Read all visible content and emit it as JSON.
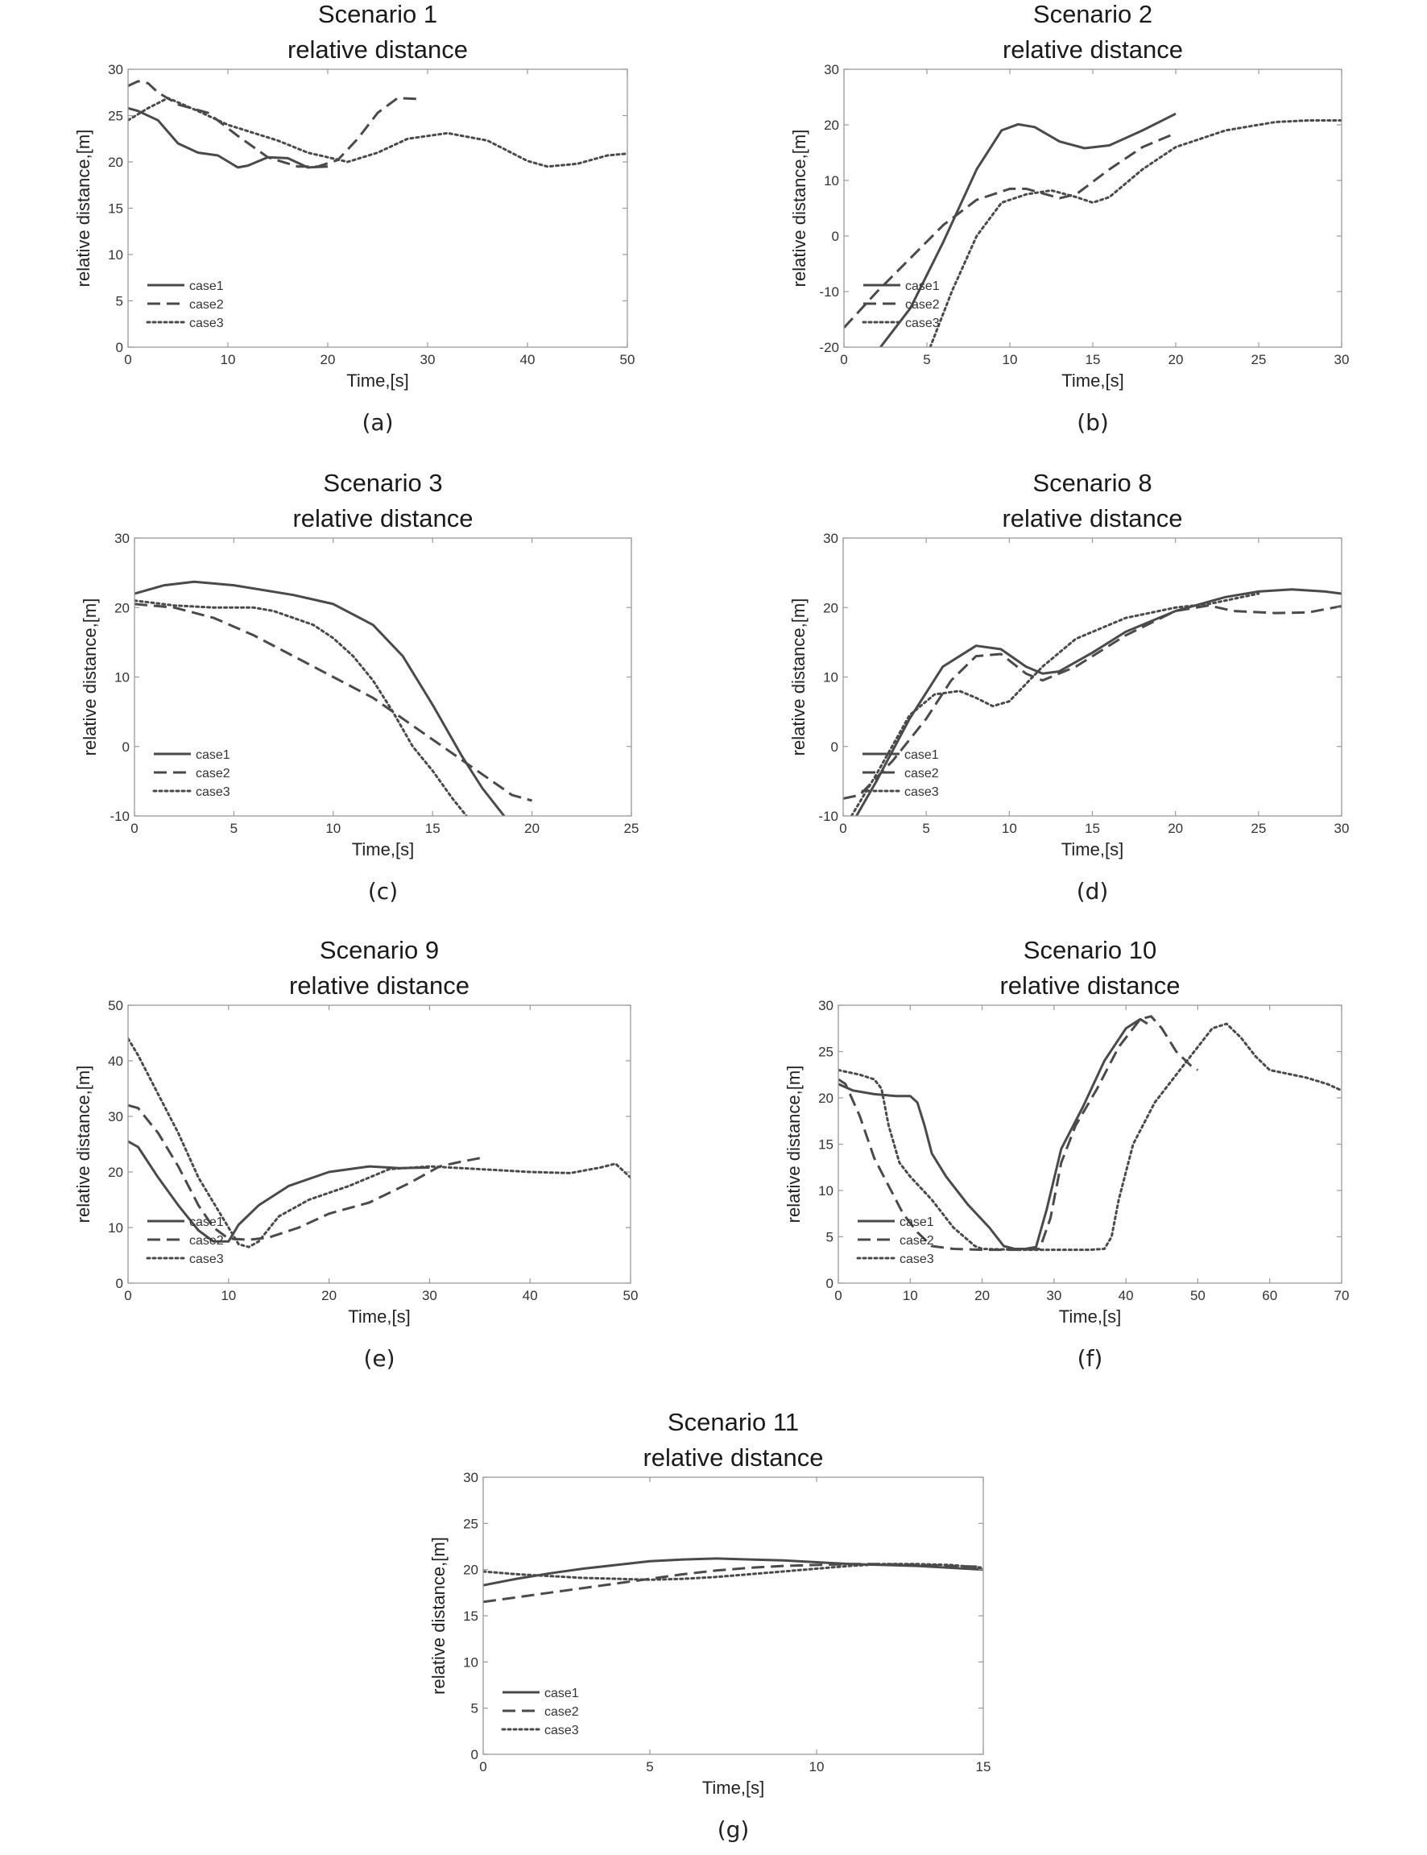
{
  "figure": {
    "background": "#ffffff",
    "axis_color": "#9a9a9a",
    "line_color": "#4a4a4a"
  },
  "chart_data": [
    {
      "type": "line",
      "panel": "(a)",
      "title": [
        "Scenario 1",
        "relative distance"
      ],
      "xlabel": "Time,[s]",
      "ylabel": "relative distance,[m]",
      "xlim": [
        0,
        50
      ],
      "ylim": [
        0,
        30
      ],
      "xticks": [
        0,
        10,
        20,
        30,
        40,
        50
      ],
      "yticks": [
        0,
        5,
        10,
        15,
        20,
        25,
        30
      ],
      "legend": "bottom-left",
      "series": [
        {
          "name": "case1",
          "style": "solid",
          "x": [
            0,
            1,
            3,
            5,
            7,
            9,
            11,
            12,
            14,
            16,
            18,
            20
          ],
          "y": [
            25.8,
            25.5,
            24.5,
            22,
            21,
            20.7,
            19.4,
            19.6,
            20.5,
            20.4,
            19.4,
            19.5
          ]
        },
        {
          "name": "case2",
          "style": "dashed",
          "x": [
            0,
            1,
            2,
            3,
            5,
            8,
            11,
            14,
            17,
            19,
            21,
            23,
            25,
            27,
            29
          ],
          "y": [
            28.2,
            28.7,
            28.5,
            27.5,
            26.2,
            25.3,
            22.8,
            20.5,
            19.5,
            19.5,
            20.2,
            22.5,
            25.3,
            26.9,
            26.8
          ]
        },
        {
          "name": "case3",
          "style": "dotted",
          "x": [
            0,
            2,
            4,
            7,
            10,
            15,
            18,
            22,
            25,
            28,
            32,
            36,
            40,
            42,
            45,
            48,
            50
          ],
          "y": [
            24.5,
            25.8,
            26.9,
            25.5,
            24,
            22.3,
            21,
            20,
            21,
            22.5,
            23.1,
            22.3,
            20.1,
            19.5,
            19.8,
            20.7,
            20.9
          ]
        }
      ]
    },
    {
      "type": "line",
      "panel": "(b)",
      "title": [
        "Scenario 2",
        "relative distance"
      ],
      "xlabel": "Time,[s]",
      "ylabel": "relative distance,[m]",
      "xlim": [
        0,
        30
      ],
      "ylim": [
        -20,
        30
      ],
      "xticks": [
        0,
        5,
        10,
        15,
        20,
        25,
        30
      ],
      "yticks": [
        -20,
        -10,
        0,
        10,
        20,
        30
      ],
      "legend": "bottom-left",
      "series": [
        {
          "name": "case1",
          "style": "solid",
          "x": [
            2.2,
            4,
            6,
            8,
            9.5,
            10.5,
            11.5,
            13,
            14.5,
            16,
            18,
            20
          ],
          "y": [
            -20,
            -13,
            -1,
            12,
            19,
            20.1,
            19.6,
            17,
            15.8,
            16.3,
            19,
            22
          ]
        },
        {
          "name": "case2",
          "style": "dashed",
          "x": [
            0,
            2,
            4,
            6,
            8,
            10,
            11,
            13,
            14,
            16,
            18,
            20
          ],
          "y": [
            -16.5,
            -10,
            -4,
            2,
            6.5,
            8.5,
            8.5,
            6.8,
            7.5,
            12,
            16,
            18.5
          ]
        },
        {
          "name": "case3",
          "style": "dotted",
          "x": [
            5.2,
            6.5,
            8,
            9.5,
            11,
            12.5,
            14,
            15,
            16,
            18,
            20,
            23,
            26,
            28,
            30
          ],
          "y": [
            -20,
            -10,
            0,
            6,
            7.5,
            8.2,
            7,
            6,
            7,
            12,
            16,
            19,
            20.5,
            20.8,
            20.8
          ]
        }
      ]
    },
    {
      "type": "line",
      "panel": "(c)",
      "title": [
        "Scenario 3",
        "relative distance"
      ],
      "xlabel": "Time,[s]",
      "ylabel": "relative distance,[m]",
      "xlim": [
        0,
        25
      ],
      "ylim": [
        -10,
        30
      ],
      "xticks": [
        0,
        5,
        10,
        15,
        20,
        25
      ],
      "yticks": [
        -10,
        0,
        10,
        20,
        30
      ],
      "legend": "bottom-left",
      "series": [
        {
          "name": "case1",
          "style": "solid",
          "x": [
            0,
            1.5,
            3,
            5,
            8,
            10,
            12,
            13.5,
            15,
            16.5,
            17.5,
            18.6
          ],
          "y": [
            22,
            23.2,
            23.7,
            23.2,
            21.8,
            20.5,
            17.5,
            13,
            6,
            -1.5,
            -6,
            -10
          ]
        },
        {
          "name": "case2",
          "style": "dashed",
          "x": [
            0,
            2,
            4,
            6,
            8,
            10,
            12,
            14,
            16,
            18,
            19,
            20
          ],
          "y": [
            20.5,
            20,
            18.5,
            16,
            13,
            10,
            7,
            3,
            -1,
            -5,
            -7,
            -7.8
          ]
        },
        {
          "name": "case3",
          "style": "dotted",
          "x": [
            0,
            2,
            4,
            6,
            7,
            9,
            10,
            11,
            12,
            13,
            14,
            15,
            16,
            16.7
          ],
          "y": [
            21,
            20.3,
            20,
            20,
            19.5,
            17.5,
            15.6,
            13,
            9.5,
            5,
            0,
            -3.5,
            -7.5,
            -10
          ]
        }
      ]
    },
    {
      "type": "line",
      "panel": "(d)",
      "title": [
        "Scenario 8",
        "relative distance"
      ],
      "xlabel": "Time,[s]",
      "ylabel": "relative distance,[m]",
      "xlim": [
        0,
        30
      ],
      "ylim": [
        -10,
        30
      ],
      "xticks": [
        0,
        5,
        10,
        15,
        20,
        25,
        30
      ],
      "yticks": [
        -10,
        0,
        10,
        20,
        30
      ],
      "legend": "bottom-left",
      "series": [
        {
          "name": "case1",
          "style": "solid",
          "x": [
            0.8,
            2,
            4,
            6,
            8,
            9.5,
            11,
            12,
            13,
            15,
            17,
            20,
            23,
            25,
            27,
            29,
            30
          ],
          "y": [
            -10,
            -5,
            4,
            11.5,
            14.5,
            14,
            11.5,
            10.5,
            10.8,
            13.5,
            16.5,
            19.5,
            21.5,
            22.3,
            22.6,
            22.3,
            22
          ]
        },
        {
          "name": "case2",
          "style": "dashed",
          "x": [
            0,
            1,
            3,
            5,
            6.5,
            8,
            9.5,
            11,
            12,
            14,
            17,
            20,
            22,
            23.5,
            26,
            28,
            30
          ],
          "y": [
            -7.5,
            -7,
            -2,
            4,
            9.5,
            13,
            13.3,
            10.5,
            9.5,
            11.5,
            16,
            19.5,
            20.3,
            19.5,
            19.2,
            19.3,
            20.2
          ]
        },
        {
          "name": "case3",
          "style": "dotted",
          "x": [
            0.5,
            2,
            4,
            5.5,
            7,
            8,
            9,
            10,
            11,
            12,
            14,
            17,
            20,
            22,
            25
          ],
          "y": [
            -10,
            -4,
            4.5,
            7.5,
            8,
            7,
            5.8,
            6.5,
            9,
            11.5,
            15.5,
            18.5,
            20,
            20.5,
            22
          ]
        }
      ]
    },
    {
      "type": "line",
      "panel": "(e)",
      "title": [
        "Scenario 9",
        "relative distance"
      ],
      "xlabel": "Time,[s]",
      "ylabel": "relative distance,[m]",
      "xlim": [
        0,
        50
      ],
      "ylim": [
        0,
        50
      ],
      "xticks": [
        0,
        10,
        20,
        30,
        40,
        50
      ],
      "yticks": [
        0,
        10,
        20,
        30,
        40,
        50
      ],
      "legend": "bottom-left",
      "series": [
        {
          "name": "case1",
          "style": "solid",
          "x": [
            0,
            1,
            3,
            5,
            7,
            8.5,
            10,
            11,
            13,
            16,
            20,
            24,
            27,
            30
          ],
          "y": [
            25.5,
            24.5,
            19,
            14,
            9.5,
            7.5,
            7.5,
            10.5,
            14,
            17.5,
            20,
            21,
            20.7,
            20.8
          ]
        },
        {
          "name": "case2",
          "style": "dashed",
          "x": [
            0,
            1,
            3,
            5,
            7,
            8.5,
            10,
            12,
            14,
            17,
            20,
            24,
            28,
            31,
            33,
            35
          ],
          "y": [
            32,
            31.5,
            27,
            21,
            14,
            10,
            8,
            7.8,
            8.2,
            10,
            12.5,
            14.5,
            18,
            21,
            21.8,
            22.5
          ]
        },
        {
          "name": "case3",
          "style": "dotted",
          "x": [
            0,
            1,
            3,
            5,
            7,
            9,
            11,
            12,
            13,
            15,
            18,
            22,
            26,
            30,
            35,
            40,
            44,
            47,
            48.5,
            50
          ],
          "y": [
            44,
            41,
            34,
            27,
            19,
            13,
            7,
            6.5,
            7.5,
            12,
            15,
            17.5,
            20.5,
            21,
            20.5,
            20,
            19.8,
            20.8,
            21.5,
            19
          ]
        }
      ]
    },
    {
      "type": "line",
      "panel": "(f)",
      "title": [
        "Scenario 10",
        "relative distance"
      ],
      "xlabel": "Time,[s]",
      "ylabel": "relative distance,[m]",
      "xlim": [
        0,
        70
      ],
      "ylim": [
        0,
        30
      ],
      "xticks": [
        0,
        10,
        20,
        30,
        40,
        50,
        60,
        70
      ],
      "yticks": [
        0,
        5,
        10,
        15,
        20,
        25,
        30
      ],
      "legend": "bottom-left",
      "series": [
        {
          "name": "case1",
          "style": "solid",
          "x": [
            0,
            2,
            5,
            8,
            10,
            11,
            12,
            13,
            15,
            18,
            21,
            23,
            24.5,
            26,
            27.5,
            29,
            31,
            34,
            37,
            40,
            42,
            43
          ],
          "y": [
            21.5,
            20.8,
            20.4,
            20.2,
            20.2,
            19.5,
            17,
            14,
            11.5,
            8.5,
            6,
            4,
            3.7,
            3.7,
            3.9,
            8,
            14.5,
            19,
            24,
            27.5,
            28.5,
            28
          ]
        },
        {
          "name": "case2",
          "style": "dashed",
          "x": [
            0,
            1,
            3,
            5,
            7,
            9,
            11,
            13,
            16,
            20,
            25,
            28,
            29.5,
            31,
            33,
            36,
            39,
            42,
            43.5,
            45,
            47,
            49,
            50
          ],
          "y": [
            22,
            21.5,
            18,
            13.5,
            10.5,
            7.5,
            5.5,
            4,
            3.7,
            3.6,
            3.6,
            3.7,
            7,
            13,
            17,
            21,
            25.5,
            28.5,
            28.8,
            27.5,
            25,
            23.5,
            23
          ]
        },
        {
          "name": "case3",
          "style": "dotted",
          "x": [
            0,
            3,
            5,
            6,
            7,
            8.5,
            10,
            13,
            16,
            19,
            20,
            25,
            30,
            35,
            37,
            38,
            39,
            41,
            44,
            47,
            50,
            52,
            54,
            56,
            58,
            60,
            65,
            68,
            70
          ],
          "y": [
            23,
            22.5,
            22,
            21,
            17,
            13,
            11.5,
            9,
            6,
            4,
            3.7,
            3.6,
            3.6,
            3.6,
            3.7,
            5,
            9,
            15,
            19.5,
            22.5,
            25.5,
            27.5,
            28,
            26.5,
            24.5,
            23,
            22.2,
            21.5,
            20.8
          ]
        }
      ]
    },
    {
      "type": "line",
      "panel": "(g)",
      "title": [
        "Scenario 11",
        "relative distance"
      ],
      "xlabel": "Time,[s]",
      "ylabel": "relative distance,[m]",
      "xlim": [
        0,
        15
      ],
      "ylim": [
        0,
        30
      ],
      "xticks": [
        0,
        5,
        10,
        15
      ],
      "yticks": [
        0,
        5,
        10,
        15,
        20,
        25,
        30
      ],
      "legend": "bottom-left",
      "series": [
        {
          "name": "case1",
          "style": "solid",
          "x": [
            0,
            1,
            2,
            3,
            4,
            5,
            6,
            7,
            8,
            9,
            10,
            11,
            12,
            13,
            14,
            15
          ],
          "y": [
            18.3,
            19,
            19.6,
            20.1,
            20.5,
            20.9,
            21.1,
            21.2,
            21.1,
            21,
            20.8,
            20.6,
            20.5,
            20.4,
            20.2,
            20
          ]
        },
        {
          "name": "case2",
          "style": "dashed",
          "x": [
            0,
            1,
            2,
            3,
            4,
            5,
            6,
            7,
            8,
            9,
            10,
            11,
            12,
            13,
            14,
            15
          ],
          "y": [
            16.5,
            17,
            17.5,
            18,
            18.5,
            19,
            19.5,
            19.9,
            20.2,
            20.4,
            20.5,
            20.6,
            20.6,
            20.5,
            20.4,
            20.3
          ]
        },
        {
          "name": "case3",
          "style": "dotted",
          "x": [
            0,
            1,
            2,
            3,
            4,
            5,
            6,
            7,
            8,
            9,
            10,
            11,
            12,
            13,
            14,
            15
          ],
          "y": [
            19.8,
            19.5,
            19.3,
            19.1,
            19,
            18.9,
            19,
            19.2,
            19.5,
            19.8,
            20.1,
            20.4,
            20.6,
            20.6,
            20.5,
            20.2
          ]
        }
      ]
    }
  ]
}
